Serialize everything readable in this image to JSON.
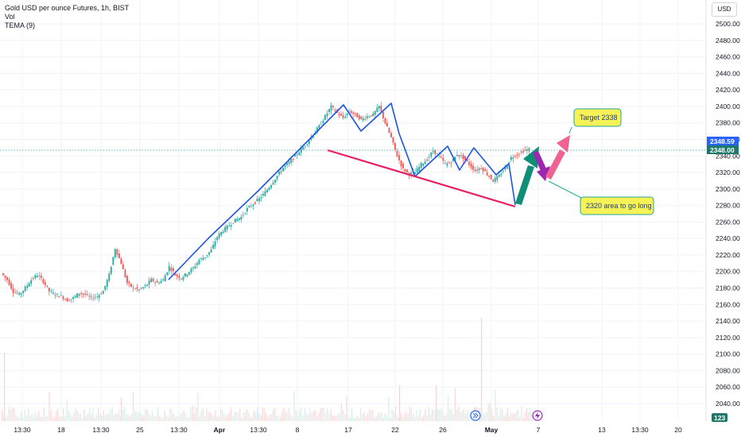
{
  "header": {
    "title": "Gold USD per ounce Futures, 1h, BIST",
    "indicator_1": "Vol",
    "indicator_2": "TEMA (9)"
  },
  "currency_label": "USD",
  "price_labels": {
    "last_price": "2348.59",
    "tema_price": "2348.00",
    "volume_badge": "123"
  },
  "annotations": {
    "target": "Target 2338",
    "long_zone": "2320 area to go long"
  },
  "colors": {
    "up_candle": "#26a69a",
    "down_candle": "#ef5350",
    "trend_line": "#1e53e5",
    "support_line": "#e91e63",
    "green_arrow": "#0e8f76",
    "purple_arrow": "#9c27b0",
    "pink_arrow": "#f06292",
    "callout_fill": "#f7f356",
    "last_price_bg": "#2962ff",
    "tema_bg": "#1b7a6b"
  },
  "icons": [
    "forward-circle-icon",
    "lightning-circle-icon"
  ],
  "chart_data": {
    "type": "line",
    "title": "Gold USD per ounce Futures, 1h, BIST",
    "ylim": [
      2030,
      2510
    ],
    "y_ticks": [
      2040,
      2060,
      2080,
      2100,
      2120,
      2140,
      2160,
      2180,
      2200,
      2220,
      2240,
      2260,
      2280,
      2300,
      2320,
      2340,
      2360,
      2380,
      2400,
      2420,
      2440,
      2460,
      2480,
      2500
    ],
    "x_ticks": [
      "13:30",
      "18",
      "13:30",
      "25",
      "13:30",
      "Apr",
      "13:30",
      "8",
      "17",
      "22",
      "26",
      "May",
      "7",
      "13",
      "13:30",
      "20"
    ],
    "x_ticks_bold": [
      "Apr",
      "May"
    ],
    "grid": true,
    "series": [
      {
        "values": [
          2198,
          2190,
          2176,
          2172,
          2180,
          2190,
          2196,
          2188,
          2176,
          2172,
          2170,
          2165,
          2168,
          2174,
          2172,
          2168,
          2170,
          2176,
          2196,
          2228,
          2210,
          2186,
          2180,
          2178,
          2182,
          2190,
          2186,
          2190,
          2206,
          2196,
          2192,
          2198,
          2204,
          2214,
          2218,
          2226,
          2242,
          2250,
          2256,
          2262,
          2266,
          2276,
          2282,
          2288,
          2296,
          2306,
          2316,
          2326,
          2332,
          2340,
          2348,
          2356,
          2366,
          2376,
          2388,
          2400,
          2392,
          2386,
          2394,
          2390,
          2384,
          2388,
          2390,
          2400,
          2380,
          2362,
          2340,
          2324,
          2318,
          2320,
          2330,
          2336,
          2346,
          2340,
          2330,
          2332,
          2342,
          2338,
          2330,
          2322,
          2326,
          2318,
          2310,
          2316,
          2326,
          2338,
          2342,
          2346,
          2348
        ]
      },
      {
        "name": "Vol",
        "values": []
      }
    ]
  }
}
